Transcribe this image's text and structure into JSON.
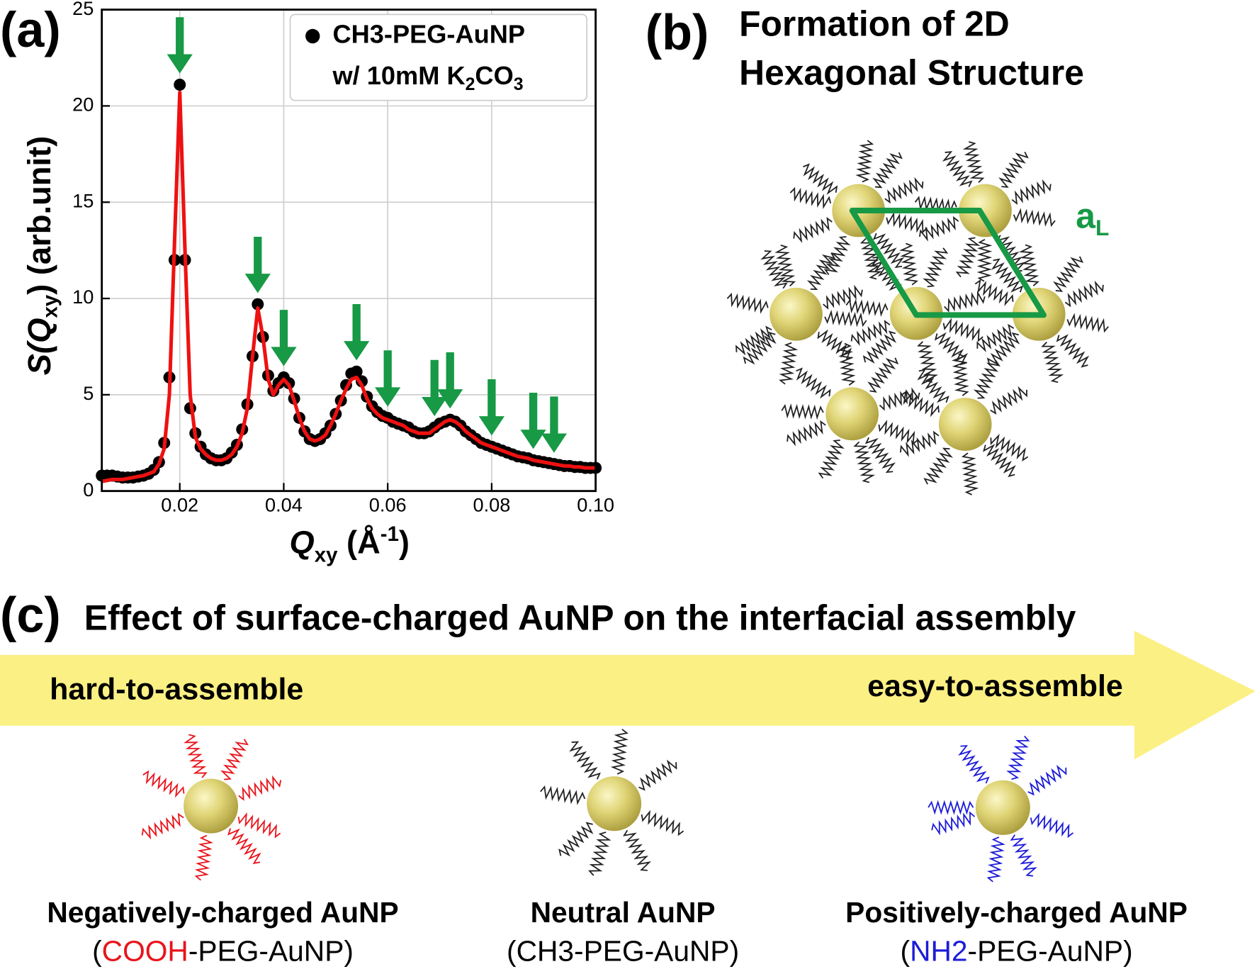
{
  "chart_data": {
    "type": "scatter",
    "panel_label": "(a)",
    "xlabel": [
      "Q",
      "xy",
      " (Å",
      "-1",
      ")"
    ],
    "ylabel": [
      "S(Q",
      "xy",
      ") (arb.unit)"
    ],
    "xlim": [
      0.005,
      0.1
    ],
    "ylim": [
      0,
      25
    ],
    "xticks": [
      0.02,
      0.04,
      0.06,
      0.08,
      {
        "value": 0.1,
        "label": "0.10"
      }
    ],
    "yticks": [
      0,
      5,
      10,
      15,
      20,
      25
    ],
    "grid": true,
    "x": [
      0.005,
      0.006,
      0.007,
      0.008,
      0.009,
      0.01,
      0.011,
      0.012,
      0.013,
      0.014,
      0.015,
      0.016,
      0.017,
      0.018,
      0.019,
      0.02,
      0.021,
      0.022,
      0.023,
      0.024,
      0.025,
      0.026,
      0.027,
      0.028,
      0.029,
      0.03,
      0.031,
      0.032,
      0.033,
      0.034,
      0.035,
      0.036,
      0.037,
      0.038,
      0.039,
      0.04,
      0.041,
      0.042,
      0.043,
      0.044,
      0.045,
      0.046,
      0.047,
      0.048,
      0.049,
      0.05,
      0.051,
      0.052,
      0.053,
      0.054,
      0.055,
      0.056,
      0.057,
      0.058,
      0.059,
      0.06,
      0.061,
      0.062,
      0.063,
      0.064,
      0.065,
      0.066,
      0.067,
      0.068,
      0.069,
      0.07,
      0.071,
      0.072,
      0.073,
      0.074,
      0.075,
      0.076,
      0.077,
      0.078,
      0.079,
      0.08,
      0.081,
      0.082,
      0.083,
      0.084,
      0.085,
      0.086,
      0.087,
      0.088,
      0.089,
      0.09,
      0.091,
      0.092,
      0.093,
      0.094,
      0.095,
      0.096,
      0.097,
      0.098,
      0.099,
      0.1
    ],
    "series": [
      {
        "name": [
          "CH3-PEG-AuNP",
          "w/ 10mM K",
          "2",
          "CO",
          "3"
        ],
        "color": "#000000",
        "values": [
          0.8,
          0.8,
          0.8,
          0.75,
          0.7,
          0.7,
          0.7,
          0.75,
          0.8,
          0.9,
          1.1,
          1.5,
          2.5,
          5.9,
          12,
          21.1,
          12,
          4.3,
          3.0,
          2.3,
          1.9,
          1.7,
          1.6,
          1.6,
          1.7,
          2.0,
          2.4,
          3.2,
          4.5,
          7.0,
          9.7,
          8.0,
          6.0,
          5.2,
          5.6,
          5.9,
          5.6,
          4.8,
          3.8,
          3.1,
          2.7,
          2.6,
          2.7,
          3.0,
          3.4,
          4.0,
          4.7,
          5.5,
          6.1,
          6.2,
          5.7,
          4.9,
          4.4,
          4.1,
          3.9,
          3.8,
          3.6,
          3.5,
          3.4,
          3.3,
          3.1,
          3.0,
          3.0,
          3.1,
          3.3,
          3.5,
          3.6,
          3.7,
          3.6,
          3.4,
          3.1,
          2.9,
          2.7,
          2.5,
          2.4,
          2.3,
          2.2,
          2.1,
          2.0,
          1.9,
          1.8,
          1.75,
          1.7,
          1.6,
          1.55,
          1.5,
          1.45,
          1.4,
          1.35,
          1.3,
          1.3,
          1.25,
          1.25,
          1.2,
          1.2,
          1.2
        ]
      },
      {
        "type": "line",
        "color": "#ee1111",
        "values": [
          0.5,
          0.55,
          0.6,
          0.6,
          0.6,
          0.65,
          0.7,
          0.75,
          0.8,
          0.9,
          1.0,
          1.4,
          2.2,
          5.0,
          13,
          20.7,
          12.5,
          5,
          2.8,
          2.2,
          1.9,
          1.7,
          1.6,
          1.6,
          1.7,
          1.9,
          2.3,
          3.0,
          4.3,
          7.0,
          9.5,
          8.0,
          5.8,
          5.0,
          5.5,
          5.8,
          5.5,
          4.7,
          3.8,
          3.1,
          2.7,
          2.6,
          2.7,
          2.9,
          3.4,
          4.0,
          4.7,
          5.3,
          5.8,
          5.9,
          5.5,
          4.8,
          4.3,
          4.0,
          3.8,
          3.7,
          3.6,
          3.5,
          3.4,
          3.2,
          3.1,
          3.0,
          3.0,
          3.0,
          3.2,
          3.4,
          3.6,
          3.7,
          3.6,
          3.4,
          3.1,
          2.9,
          2.7,
          2.5,
          2.4,
          2.3,
          2.2,
          2.1,
          2.0,
          1.9,
          1.8,
          1.75,
          1.7,
          1.6,
          1.55,
          1.5,
          1.45,
          1.4,
          1.35,
          1.3,
          1.3,
          1.25,
          1.25,
          1.2,
          1.2,
          1.2
        ]
      }
    ],
    "peak_arrows_x": [
      0.02,
      0.035,
      0.04,
      0.054,
      0.06,
      0.069,
      0.072,
      0.08,
      0.088,
      0.092
    ],
    "arrow_color": "#179945"
  },
  "panel_b": {
    "label": "(b)",
    "title": [
      "Formation of 2D",
      "Hexagonal Structure"
    ],
    "lattice_label": [
      "a",
      "L"
    ],
    "lattice_color": "#179945"
  },
  "panel_c": {
    "label": "(c)",
    "title": "Effect of surface-charged AuNP on the interfacial assembly",
    "arrow_left": "hard-to-assemble",
    "arrow_right": "easy-to-assemble",
    "particles": [
      {
        "name": "Negatively-charged AuNP",
        "formula": [
          "(",
          "COOH",
          "-PEG-AuNP)"
        ],
        "ligand_color": "#e8141b",
        "formula_color": "#e8141b"
      },
      {
        "name": "Neutral AuNP",
        "formula": [
          "(",
          "CH3",
          "-PEG-AuNP)"
        ],
        "ligand_color": "#222222",
        "formula_color": "#000000"
      },
      {
        "name": "Positively-charged AuNP",
        "formula": [
          "(",
          "NH2",
          "-PEG-AuNP)"
        ],
        "ligand_color": "#1c1cd8",
        "formula_color": "#1c1cd8"
      }
    ]
  }
}
